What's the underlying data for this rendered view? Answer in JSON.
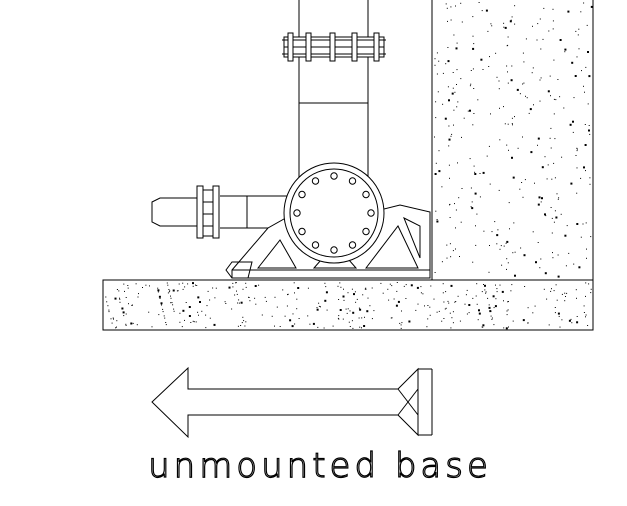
{
  "caption": "unmounted base",
  "colors": {
    "line": "#000000",
    "background": "#ffffff",
    "concrete_speckle": "#000000"
  }
}
